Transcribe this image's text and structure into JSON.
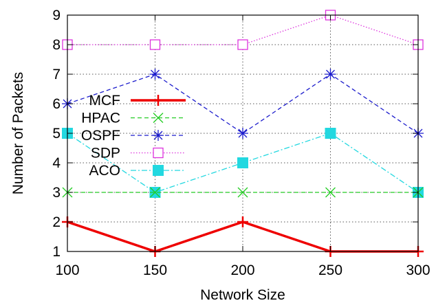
{
  "chart_data": {
    "type": "line",
    "xlabel": "Network Size",
    "ylabel": "Number of Packets",
    "x": [
      100,
      150,
      200,
      250,
      300
    ],
    "xlim": [
      100,
      300
    ],
    "ylim": [
      1,
      9
    ],
    "xticks": [
      "100",
      "150",
      "200",
      "250",
      "300"
    ],
    "yticks": [
      "1",
      "2",
      "3",
      "4",
      "5",
      "6",
      "7",
      "8",
      "9"
    ],
    "grid": true,
    "legend_position": "left",
    "series": [
      {
        "name": "MCF",
        "values": [
          2,
          1,
          2,
          1,
          1
        ],
        "color": "#ee0000",
        "marker": "plus",
        "dash": "solid"
      },
      {
        "name": "HPAC",
        "values": [
          3,
          3,
          3,
          3,
          3
        ],
        "color": "#22cc22",
        "marker": "x",
        "dash": "dashed"
      },
      {
        "name": "OSPF",
        "values": [
          6,
          7,
          5,
          7,
          5
        ],
        "color": "#1a1acc",
        "marker": "star",
        "dash": "dashed"
      },
      {
        "name": "SDP",
        "values": [
          8,
          8,
          8,
          9,
          8
        ],
        "color": "#dd33dd",
        "marker": "square-open",
        "dash": "dotted"
      },
      {
        "name": "ACO",
        "values": [
          5,
          3,
          4,
          5,
          3
        ],
        "color": "#22d8e0",
        "marker": "square-filled",
        "dash": "dashdot"
      }
    ]
  }
}
